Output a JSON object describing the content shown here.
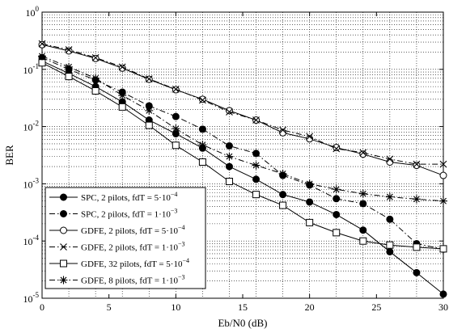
{
  "chart_data": {
    "type": "line",
    "xlabel": "Eb/N0 (dB)",
    "ylabel": "BER",
    "xlim": [
      0,
      30
    ],
    "ylim": [
      1e-05,
      1
    ],
    "yscale": "log",
    "grid": true,
    "legend_position": "bottom-left",
    "x_ticks": [
      "0",
      "5",
      "10",
      "15",
      "20",
      "25",
      "30"
    ],
    "y_ticks": [
      {
        "base": "10",
        "exp": "-5"
      },
      {
        "base": "10",
        "exp": "-4"
      },
      {
        "base": "10",
        "exp": "-3"
      },
      {
        "base": "10",
        "exp": "-2"
      },
      {
        "base": "10",
        "exp": "-1"
      },
      {
        "base": "10",
        "exp": "0"
      }
    ],
    "x": [
      0,
      2,
      4,
      6,
      8,
      10,
      12,
      14,
      16,
      18,
      20,
      22,
      24,
      26,
      28,
      30
    ],
    "series": [
      {
        "name": "SPC, 2 pilots, fdT = 5·10",
        "name_exp": "−4",
        "marker": "filled-circle",
        "line": "solid",
        "values": [
          0.14,
          0.085,
          0.05,
          0.027,
          0.013,
          0.0075,
          0.0042,
          0.002,
          0.0012,
          0.00065,
          0.00048,
          0.00029,
          0.000155,
          6.5e-05,
          2.8e-05,
          1.18e-05
        ]
      },
      {
        "name": "SPC, 2 pilots, fdT = 1·10",
        "name_exp": "−3",
        "marker": "filled-circle",
        "line": "dashdot",
        "values": [
          0.16,
          0.1,
          0.065,
          0.04,
          0.023,
          0.015,
          0.009,
          0.0046,
          0.0034,
          0.0014,
          0.00095,
          0.00055,
          0.00045,
          0.00024,
          9e-05,
          7.2e-05
        ]
      },
      {
        "name": "GDFE, 2 pilots, fdT = 5·10",
        "name_exp": "−4",
        "marker": "open-circle",
        "line": "solid",
        "values": [
          0.27,
          0.21,
          0.155,
          0.105,
          0.067,
          0.044,
          0.03,
          0.019,
          0.013,
          0.0078,
          0.0061,
          0.0043,
          0.0033,
          0.0024,
          0.0021,
          0.0014
        ]
      },
      {
        "name": "GDFE, 2 pilots, fdT = 1·10",
        "name_exp": "−3",
        "marker": "x",
        "line": "dashdot",
        "values": [
          0.28,
          0.22,
          0.16,
          0.11,
          0.068,
          0.045,
          0.029,
          0.018,
          0.013,
          0.0087,
          0.0067,
          0.0041,
          0.0035,
          0.0027,
          0.0022,
          0.0022
        ]
      },
      {
        "name": "GDFE, 32 pilots, fdT = 5·10",
        "name_exp": "−4",
        "marker": "open-square",
        "line": "solid",
        "values": [
          0.13,
          0.075,
          0.042,
          0.022,
          0.0105,
          0.0047,
          0.0024,
          0.0011,
          0.00065,
          0.00042,
          0.00021,
          0.00014,
          0.0001,
          8.5e-05,
          7.8e-05,
          7.3e-05
        ]
      },
      {
        "name": "GDFE, 8 pilots, fdT = 1·10",
        "name_exp": "−3",
        "marker": "asterisk",
        "line": "dashdot",
        "values": [
          0.17,
          0.11,
          0.07,
          0.035,
          0.019,
          0.0092,
          0.0048,
          0.003,
          0.0021,
          0.0015,
          0.001,
          0.0008,
          0.00067,
          0.00059,
          0.00054,
          0.0005
        ]
      }
    ]
  }
}
